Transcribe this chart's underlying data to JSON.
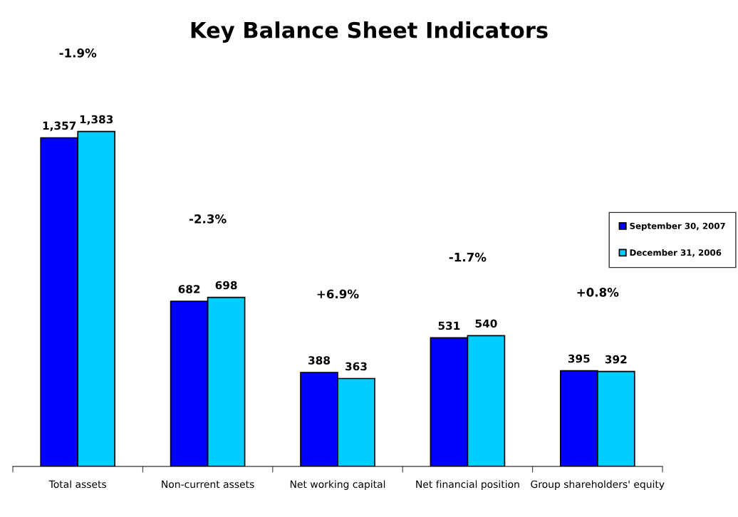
{
  "chart_data": {
    "type": "bar",
    "title": "Key Balance Sheet Indicators",
    "categories": [
      "Total assets",
      "Non-current assets",
      "Net working capital",
      "Net financial position",
      "Group shareholders' equity"
    ],
    "series": [
      {
        "name": "September 30, 2007",
        "color": "#0000ff",
        "values": [
          1357,
          682,
          388,
          531,
          395
        ],
        "value_labels": [
          "1,357",
          "682",
          "388",
          "531",
          "395"
        ]
      },
      {
        "name": "December 31, 2006",
        "color": "#00ccff",
        "values": [
          1383,
          698,
          363,
          540,
          392
        ],
        "value_labels": [
          "1,383",
          "698",
          "363",
          "540",
          "392"
        ]
      }
    ],
    "annotations": [
      "-1.9%",
      "-2.3%",
      "+6.9%",
      "-1.7%",
      "+0.8%"
    ],
    "legend": "right",
    "grid": false
  }
}
